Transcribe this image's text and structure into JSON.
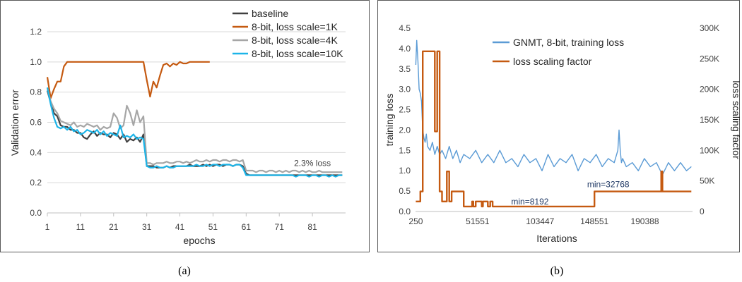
{
  "captions": {
    "a": "(a)",
    "b": "(b)"
  },
  "chart_data": [
    {
      "id": "a",
      "type": "line",
      "xlabel": "epochs",
      "ylabel": "Validation error",
      "xticks": [
        1,
        11,
        21,
        31,
        41,
        51,
        61,
        71,
        81
      ],
      "xlim": [
        1,
        91
      ],
      "ylim": [
        0,
        1.2
      ],
      "yticks": [
        "0.0",
        "0.2",
        "0.4",
        "0.6",
        "0.8",
        "1.0",
        "1.2"
      ],
      "annotation": "2.3% loss",
      "annotation_at": [
        81,
        0.31
      ],
      "legend_position": "top-right",
      "series": [
        {
          "name": "baseline",
          "color": "#404040",
          "x": [
            1,
            2,
            3,
            4,
            5,
            6,
            7,
            8,
            9,
            10,
            11,
            12,
            13,
            14,
            15,
            16,
            17,
            18,
            19,
            20,
            21,
            22,
            23,
            24,
            25,
            26,
            27,
            28,
            29,
            30,
            31,
            32,
            33,
            34,
            35,
            36,
            37,
            38,
            39,
            40,
            41,
            42,
            43,
            44,
            45,
            46,
            47,
            48,
            49,
            50,
            51,
            52,
            53,
            54,
            55,
            56,
            57,
            58,
            59,
            60,
            61,
            62,
            63,
            64,
            65,
            66,
            67,
            68,
            69,
            70,
            71,
            72,
            73,
            74,
            75,
            76,
            77,
            78,
            79,
            80,
            81,
            82,
            83,
            84,
            85,
            86,
            87,
            88,
            89,
            90
          ],
          "y": [
            0.81,
            0.73,
            0.66,
            0.64,
            0.58,
            0.57,
            0.57,
            0.55,
            0.55,
            0.53,
            0.53,
            0.5,
            0.49,
            0.52,
            0.54,
            0.51,
            0.53,
            0.52,
            0.52,
            0.5,
            0.53,
            0.52,
            0.49,
            0.52,
            0.47,
            0.49,
            0.48,
            0.5,
            0.47,
            0.52,
            0.31,
            0.31,
            0.31,
            0.3,
            0.3,
            0.3,
            0.31,
            0.3,
            0.31,
            0.31,
            0.31,
            0.31,
            0.31,
            0.32,
            0.31,
            0.31,
            0.31,
            0.32,
            0.31,
            0.32,
            0.31,
            0.32,
            0.32,
            0.31,
            0.32,
            0.32,
            0.31,
            0.32,
            0.32,
            0.31,
            0.26,
            0.25,
            0.25,
            0.25,
            0.25,
            0.25,
            0.25,
            0.25,
            0.25,
            0.25,
            0.25,
            0.25,
            0.25,
            0.25,
            0.25,
            0.25,
            0.25,
            0.25,
            0.25,
            0.25,
            0.25,
            0.25,
            0.25,
            0.25,
            0.25,
            0.25,
            0.25,
            0.25,
            0.25,
            0.25
          ]
        },
        {
          "name": "8-bit, loss scale=1K",
          "color": "#c55a11",
          "x": [
            1,
            2,
            3,
            4,
            5,
            6,
            7,
            8,
            9,
            10,
            11,
            12,
            13,
            14,
            15,
            16,
            17,
            18,
            19,
            20,
            21,
            22,
            23,
            24,
            25,
            26,
            27,
            28,
            29,
            30,
            31,
            32,
            33,
            34,
            35,
            36,
            37,
            38,
            39,
            40,
            41,
            42,
            43,
            44,
            45,
            46,
            47,
            48,
            49,
            50
          ],
          "y": [
            0.9,
            0.76,
            0.82,
            0.87,
            0.87,
            0.97,
            1.0,
            1.0,
            1.0,
            1.0,
            1.0,
            1.0,
            1.0,
            1.0,
            1.0,
            1.0,
            1.0,
            1.0,
            1.0,
            1.0,
            1.0,
            1.0,
            1.0,
            1.0,
            1.0,
            1.0,
            1.0,
            1.0,
            1.0,
            1.0,
            0.88,
            0.77,
            0.87,
            0.83,
            0.91,
            0.98,
            0.99,
            0.97,
            0.99,
            0.98,
            1.0,
            0.99,
            0.99,
            1.0,
            1.0,
            1.0,
            1.0,
            1.0,
            1.0,
            1.0
          ]
        },
        {
          "name": "8-bit, loss scale=4K",
          "color": "#a6a6a6",
          "x": [
            1,
            2,
            3,
            4,
            5,
            6,
            7,
            8,
            9,
            10,
            11,
            12,
            13,
            14,
            15,
            16,
            17,
            18,
            19,
            20,
            21,
            22,
            23,
            24,
            25,
            26,
            27,
            28,
            29,
            30,
            31,
            32,
            33,
            34,
            35,
            36,
            37,
            38,
            39,
            40,
            41,
            42,
            43,
            44,
            45,
            46,
            47,
            48,
            49,
            50,
            51,
            52,
            53,
            54,
            55,
            56,
            57,
            58,
            59,
            60,
            61,
            62,
            63,
            64,
            65,
            66,
            67,
            68,
            69,
            70,
            71,
            72,
            73,
            74,
            75,
            76,
            77,
            78,
            79,
            80,
            81,
            82,
            83,
            84,
            85,
            86,
            87,
            88,
            89,
            90
          ],
          "y": [
            0.83,
            0.74,
            0.69,
            0.66,
            0.61,
            0.6,
            0.59,
            0.58,
            0.6,
            0.57,
            0.58,
            0.57,
            0.59,
            0.58,
            0.57,
            0.58,
            0.55,
            0.57,
            0.56,
            0.57,
            0.66,
            0.63,
            0.56,
            0.58,
            0.71,
            0.66,
            0.58,
            0.68,
            0.6,
            0.64,
            0.33,
            0.33,
            0.32,
            0.33,
            0.33,
            0.33,
            0.34,
            0.33,
            0.33,
            0.34,
            0.34,
            0.33,
            0.34,
            0.33,
            0.34,
            0.35,
            0.34,
            0.34,
            0.35,
            0.34,
            0.35,
            0.35,
            0.34,
            0.35,
            0.35,
            0.34,
            0.35,
            0.35,
            0.34,
            0.35,
            0.28,
            0.28,
            0.28,
            0.27,
            0.28,
            0.28,
            0.27,
            0.28,
            0.28,
            0.27,
            0.28,
            0.27,
            0.28,
            0.27,
            0.28,
            0.28,
            0.27,
            0.28,
            0.27,
            0.28,
            0.27,
            0.27,
            0.28,
            0.27,
            0.27,
            0.27,
            0.27,
            0.27,
            0.27,
            0.27
          ]
        },
        {
          "name": "8-bit, loss scale=10K",
          "color": "#1cb4e8",
          "x": [
            1,
            2,
            3,
            4,
            5,
            6,
            7,
            8,
            9,
            10,
            11,
            12,
            13,
            14,
            15,
            16,
            17,
            18,
            19,
            20,
            21,
            22,
            23,
            24,
            25,
            26,
            27,
            28,
            29,
            30,
            31,
            32,
            33,
            34,
            35,
            36,
            37,
            38,
            39,
            40,
            41,
            42,
            43,
            44,
            45,
            46,
            47,
            48,
            49,
            50,
            51,
            52,
            53,
            54,
            55,
            56,
            57,
            58,
            59,
            60,
            61,
            62,
            63,
            64,
            65,
            66,
            67,
            68,
            69,
            70,
            71,
            72,
            73,
            74,
            75,
            76,
            77,
            78,
            79,
            80,
            81,
            82,
            83,
            84,
            85,
            86,
            87,
            88,
            89,
            90
          ],
          "y": [
            0.83,
            0.72,
            0.63,
            0.57,
            0.56,
            0.57,
            0.55,
            0.57,
            0.54,
            0.55,
            0.52,
            0.53,
            0.55,
            0.54,
            0.53,
            0.55,
            0.52,
            0.54,
            0.51,
            0.53,
            0.52,
            0.51,
            0.58,
            0.5,
            0.51,
            0.5,
            0.52,
            0.49,
            0.5,
            0.49,
            0.31,
            0.3,
            0.3,
            0.31,
            0.3,
            0.3,
            0.31,
            0.3,
            0.3,
            0.31,
            0.31,
            0.31,
            0.31,
            0.31,
            0.31,
            0.32,
            0.31,
            0.31,
            0.32,
            0.31,
            0.32,
            0.32,
            0.31,
            0.32,
            0.32,
            0.32,
            0.31,
            0.32,
            0.32,
            0.3,
            0.25,
            0.25,
            0.25,
            0.25,
            0.25,
            0.25,
            0.25,
            0.25,
            0.25,
            0.25,
            0.25,
            0.25,
            0.25,
            0.25,
            0.25,
            0.24,
            0.25,
            0.25,
            0.25,
            0.24,
            0.25,
            0.25,
            0.24,
            0.25,
            0.25,
            0.24,
            0.25,
            0.24,
            0.25,
            0.25
          ]
        }
      ]
    },
    {
      "id": "b",
      "type": "line",
      "xlabel": "Iterations",
      "ylabel": "training loss",
      "y2label": "loss scaling factor",
      "xticks": [
        250,
        51551,
        103447,
        148551,
        190388
      ],
      "xlim": [
        0,
        230000
      ],
      "ylim": [
        0,
        4.5
      ],
      "yticks": [
        "0.0",
        "0.5",
        "1.0",
        "1.5",
        "2.0",
        "2.5",
        "3.0",
        "3.5",
        "4.0",
        "4.5"
      ],
      "y2lim": [
        0,
        300000
      ],
      "y2ticks": [
        "0",
        "50K",
        "100K",
        "150K",
        "200K",
        "250K",
        "300K"
      ],
      "legend_position": "top",
      "annotations": [
        {
          "text": "min=8192",
          "at": [
            95000,
            0.17
          ]
        },
        {
          "text": "min=32768",
          "at": [
            160000,
            0.6
          ]
        }
      ],
      "series": [
        {
          "name": "GNMT, 8-bit,  training loss",
          "color": "#5b9bd5",
          "axis": "left",
          "note": "noisy training loss; values below are a coarse trace of the plotted curve",
          "x": [
            250,
            1000,
            2000,
            3000,
            4000,
            5000,
            6000,
            7000,
            8000,
            9000,
            10000,
            12000,
            14000,
            16000,
            18000,
            20000,
            22000,
            25000,
            28000,
            31000,
            34000,
            37000,
            40000,
            45000,
            50000,
            55000,
            60000,
            65000,
            70000,
            75000,
            80000,
            85000,
            90000,
            95000,
            100000,
            105000,
            110000,
            115000,
            120000,
            125000,
            130000,
            135000,
            140000,
            145000,
            150000,
            155000,
            160000,
            165000,
            168000,
            169000,
            170000,
            171000,
            172000,
            175000,
            180000,
            185000,
            190000,
            195000,
            200000,
            205000,
            210000,
            215000,
            220000,
            225000,
            229000
          ],
          "y": [
            3.6,
            4.2,
            3.7,
            3.0,
            2.9,
            2.7,
            2.0,
            1.8,
            1.7,
            1.9,
            1.6,
            1.5,
            1.7,
            1.4,
            1.6,
            1.4,
            1.5,
            1.3,
            1.6,
            1.3,
            1.5,
            1.2,
            1.4,
            1.3,
            1.5,
            1.2,
            1.4,
            1.2,
            1.5,
            1.2,
            1.3,
            1.1,
            1.4,
            1.2,
            1.3,
            1.0,
            1.4,
            1.1,
            1.3,
            1.2,
            1.4,
            1.0,
            1.3,
            1.2,
            1.4,
            1.1,
            1.3,
            1.2,
            1.5,
            2.0,
            1.5,
            1.2,
            1.3,
            1.1,
            1.2,
            1.0,
            1.3,
            1.1,
            1.2,
            0.9,
            1.2,
            1.0,
            1.2,
            1.0,
            1.1
          ]
        },
        {
          "name": "loss scaling factor",
          "color": "#c55a11",
          "axis": "right",
          "x": [
            250,
            4000,
            4000,
            6000,
            6000,
            16000,
            16000,
            18000,
            18000,
            20000,
            20000,
            22000,
            22000,
            26000,
            26000,
            28000,
            28000,
            30000,
            30000,
            40000,
            40000,
            47000,
            47000,
            48000,
            48000,
            50000,
            50000,
            55000,
            55000,
            56000,
            56000,
            60000,
            60000,
            62000,
            62000,
            64000,
            64000,
            148551,
            148551,
            204000,
            204000,
            205000,
            205000,
            229000
          ],
          "y": [
            16384,
            16384,
            32768,
            32768,
            262144,
            262144,
            131072,
            131072,
            262144,
            262144,
            32768,
            32768,
            16384,
            16384,
            65536,
            65536,
            16384,
            16384,
            32768,
            32768,
            8192,
            8192,
            16384,
            16384,
            8192,
            8192,
            16384,
            16384,
            8192,
            8192,
            16384,
            16384,
            8192,
            8192,
            16384,
            16384,
            8192,
            8192,
            32768,
            32768,
            65536,
            65536,
            32768,
            32768
          ]
        }
      ]
    }
  ]
}
